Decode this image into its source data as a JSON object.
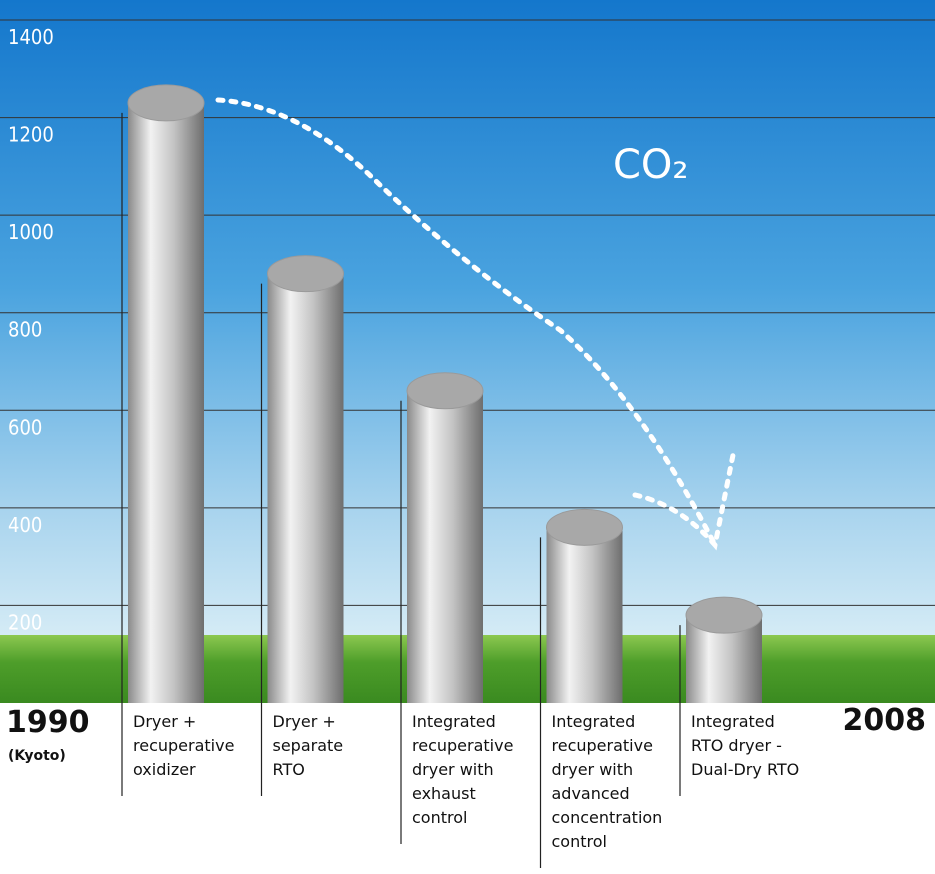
{
  "chart_data": {
    "type": "bar",
    "categories": [
      "Dryer +\nrecuperative\noxidizer",
      "Dryer +\nseparate\nRTO",
      "Integrated\nrecuperative\ndryer with\nexhaust\ncontrol",
      "Integrated\nrecuperative\ndryer with\nadvanced\nconcentration\ncontrol",
      "Integrated\nRTO dryer -\nDual-Dry RTO"
    ],
    "values": [
      1230,
      880,
      640,
      360,
      180
    ],
    "color": "#a8a8a8",
    "ylim": [
      0,
      1400
    ],
    "yticks": [
      200,
      400,
      600,
      800,
      1000,
      1200,
      1400
    ],
    "grid": true,
    "start_label": "1990",
    "start_note": "(Kyoto)",
    "end_label": "2008",
    "annotation": "CO₂"
  }
}
